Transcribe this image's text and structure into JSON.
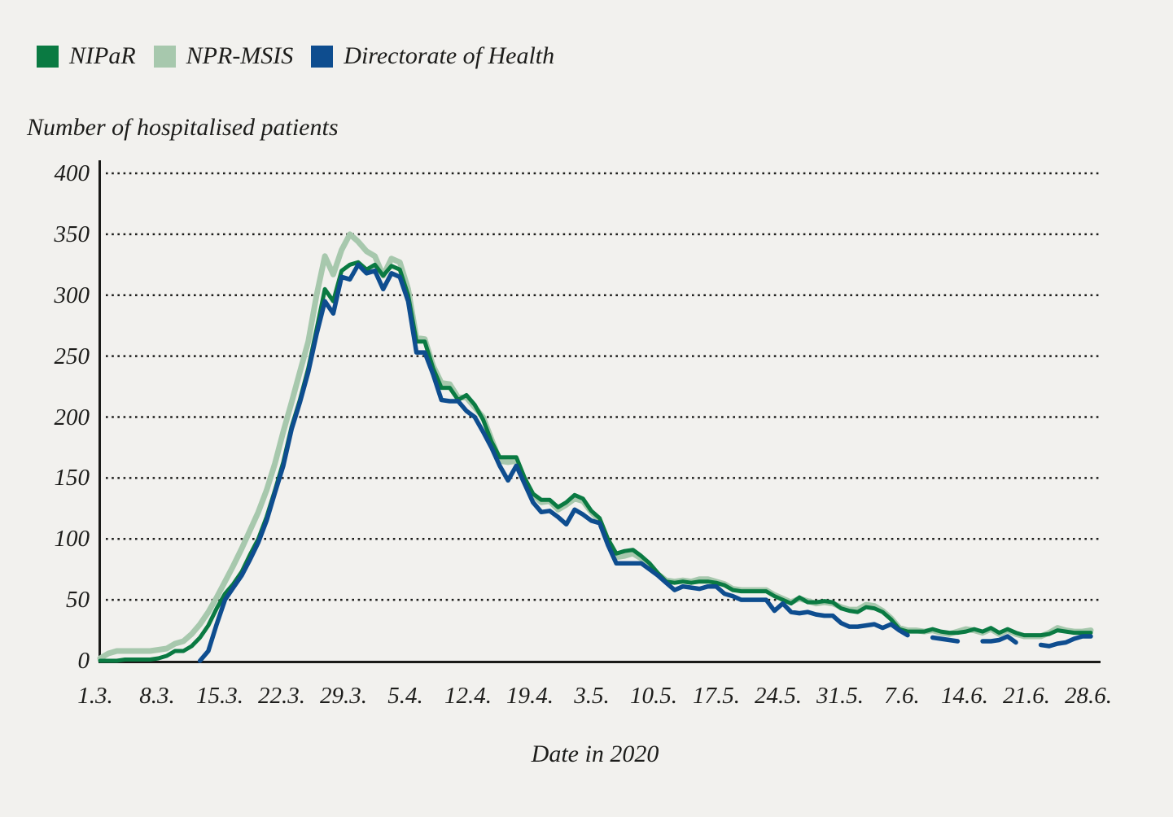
{
  "page": {
    "background": "#f2f1ee"
  },
  "legend": [
    {
      "label": "NIPaR",
      "color": "#0a7a42"
    },
    {
      "label": "NPR-MSIS",
      "color": "#a7c8ad"
    },
    {
      "label": "Directorate of Health",
      "color": "#0e4d8f"
    }
  ],
  "chart_data": {
    "type": "line",
    "title": "Number of hospitalised patients",
    "xlabel": "Date in 2020",
    "ylabel": "Number of hospitalised patients",
    "ylim": [
      0,
      400
    ],
    "yticks": [
      0,
      50,
      100,
      150,
      200,
      250,
      300,
      350,
      400
    ],
    "xticklabels": [
      "1.3.",
      "8.3.",
      "15.3.",
      "22.3.",
      "29.3.",
      "5.4.",
      "12.4.",
      "19.4.",
      "3.5.",
      "10.5.",
      "17.5.",
      "24.5.",
      "31.5.",
      "7.6.",
      "14.6.",
      "21.6.",
      "28.6."
    ],
    "x_frequency": "daily (1 March - 28 June 2020, 120 points per series; null = no report)",
    "grid": "horizontal dotted lines",
    "legend_position": "top-left",
    "series": [
      {
        "name": "NIPaR",
        "color": "#0a7a42",
        "stroke_width": 5,
        "z": 2,
        "values": [
          0,
          0,
          0,
          1,
          1,
          1,
          1,
          2,
          4,
          8,
          8,
          12,
          19,
          29,
          43,
          55,
          63,
          73,
          87,
          100,
          118,
          140,
          163,
          192,
          214,
          240,
          272,
          305,
          295,
          320,
          325,
          327,
          321,
          325,
          316,
          324,
          321,
          300,
          262,
          262,
          240,
          224,
          224,
          214,
          218,
          210,
          198,
          180,
          167,
          167,
          167,
          150,
          137,
          132,
          132,
          126,
          130,
          136,
          133,
          123,
          117,
          100,
          88,
          90,
          91,
          86,
          80,
          72,
          65,
          64,
          65,
          64,
          65,
          65,
          64,
          62,
          58,
          57,
          57,
          57,
          57,
          53,
          50,
          47,
          52,
          48,
          48,
          49,
          48,
          43,
          41,
          40,
          44,
          43,
          40,
          34,
          26,
          24,
          24,
          24,
          26,
          24,
          23,
          23,
          24,
          26,
          24,
          27,
          23,
          26,
          23,
          21,
          21,
          21,
          22,
          25,
          24,
          23,
          23,
          23
        ]
      },
      {
        "name": "NPR-MSIS",
        "color": "#a7c8ad",
        "stroke_width": 7,
        "z": 1,
        "values": [
          2,
          6,
          8,
          8,
          8,
          8,
          8,
          9,
          10,
          14,
          16,
          22,
          30,
          40,
          52,
          65,
          78,
          92,
          107,
          122,
          140,
          162,
          188,
          212,
          237,
          262,
          300,
          332,
          317,
          337,
          350,
          344,
          336,
          332,
          316,
          330,
          327,
          305,
          265,
          264,
          242,
          228,
          227,
          216,
          216,
          208,
          200,
          182,
          164,
          163,
          164,
          148,
          136,
          130,
          131,
          124,
          128,
          133,
          131,
          122,
          115,
          98,
          85,
          86,
          88,
          84,
          78,
          71,
          66,
          65,
          66,
          65,
          67,
          67,
          65,
          63,
          59,
          58,
          58,
          58,
          58,
          54,
          51,
          48,
          51,
          49,
          47,
          48,
          47,
          44,
          42,
          42,
          46,
          45,
          41,
          35,
          27,
          25,
          25,
          24,
          25,
          23,
          22,
          24,
          26,
          25,
          23,
          26,
          22,
          25,
          22,
          20,
          20,
          20,
          23,
          27,
          25,
          24,
          24,
          25
        ]
      },
      {
        "name": "Directorate of Health",
        "color": "#0e4d8f",
        "stroke_width": 5.5,
        "z": 3,
        "values": [
          null,
          null,
          null,
          null,
          null,
          null,
          null,
          null,
          null,
          null,
          null,
          null,
          0,
          8,
          30,
          50,
          60,
          70,
          83,
          97,
          115,
          138,
          160,
          190,
          212,
          237,
          268,
          295,
          285,
          315,
          313,
          325,
          318,
          320,
          305,
          318,
          315,
          295,
          253,
          253,
          235,
          214,
          213,
          213,
          205,
          200,
          188,
          175,
          160,
          148,
          160,
          145,
          130,
          122,
          123,
          118,
          112,
          124,
          120,
          115,
          113,
          95,
          80,
          80,
          80,
          80,
          75,
          70,
          64,
          58,
          61,
          60,
          59,
          61,
          61,
          55,
          53,
          50,
          50,
          50,
          50,
          41,
          47,
          40,
          39,
          40,
          38,
          37,
          37,
          31,
          28,
          28,
          29,
          30,
          27,
          30,
          25,
          21,
          null,
          null,
          19,
          18,
          17,
          16,
          null,
          null,
          16,
          16,
          17,
          20,
          15,
          null,
          null,
          13,
          12,
          14,
          15,
          18,
          20,
          20
        ]
      }
    ]
  }
}
